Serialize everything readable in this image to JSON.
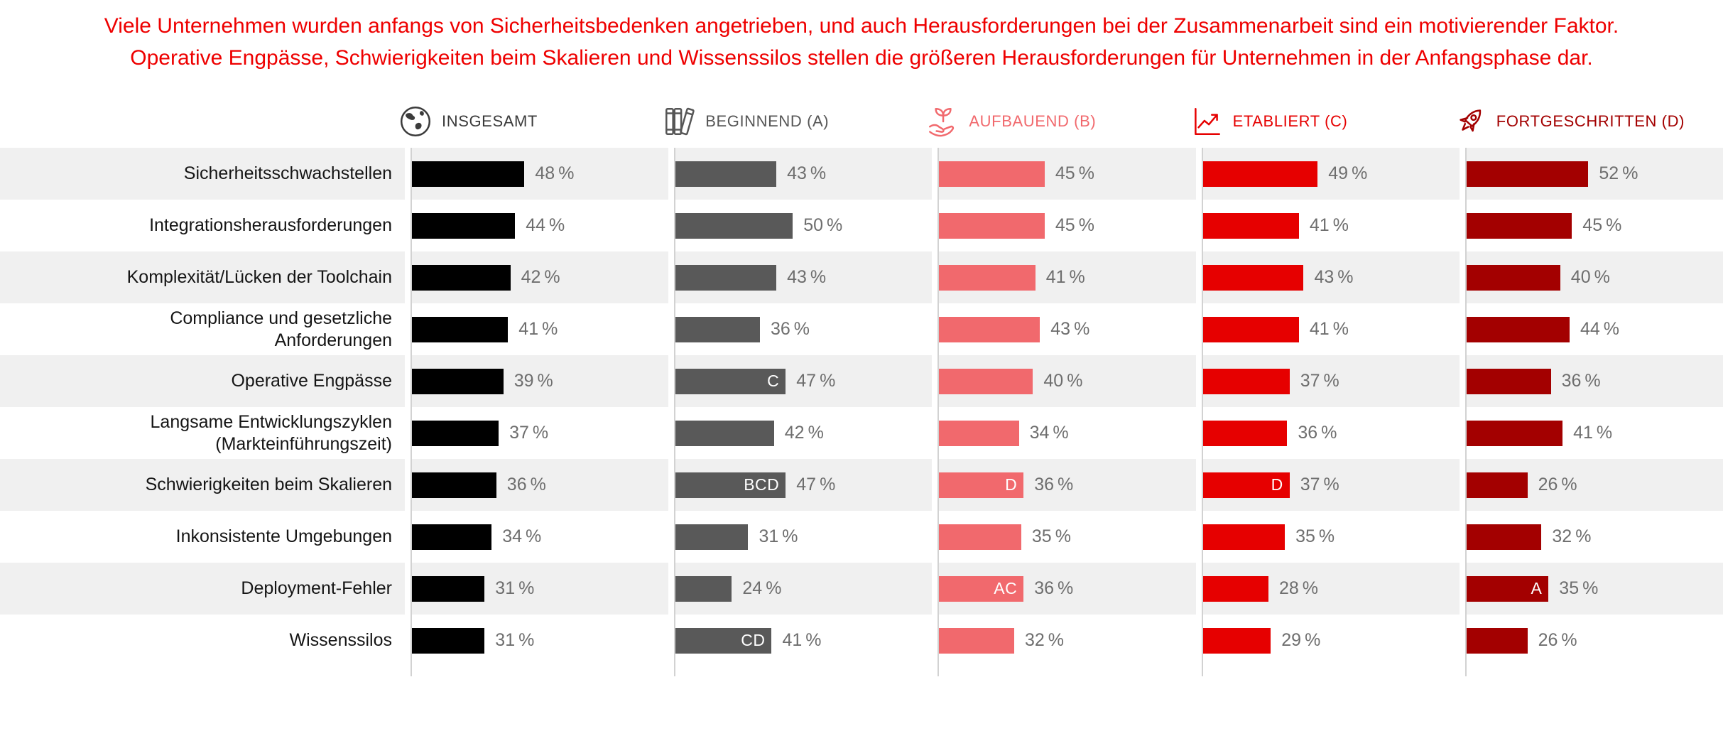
{
  "title": "Viele Unternehmen wurden anfangs von Sicherheitsbedenken angetrieben, und auch Herausforderungen bei der Zusammenarbeit sind ein motivierender Faktor. Operative Engpässe, Schwierigkeiten beim Skalieren und Wissenssilos stellen die größeren Herausforderungen für Unternehmen in der Anfangsphase dar.",
  "colors": {
    "title_text": "#ee0000",
    "row_shading": "#f0f0f0",
    "axis_line": "#d2d2d2",
    "value_text": "#6e6e6e",
    "category_text": "#151515",
    "mark_text": "#ffffff"
  },
  "chart_data": {
    "type": "bar",
    "orientation": "horizontal",
    "unit": "%",
    "title": "Viele Unternehmen wurden anfangs von Sicherheitsbedenken angetrieben, und auch Herausforderungen bei der Zusammenarbeit sind ein motivierender Faktor. Operative Engpässe, Schwierigkeiten beim Skalieren und Wissenssilos stellen die größeren Herausforderungen für Unternehmen in der Anfangsphase dar.",
    "xlim": [
      0,
      60
    ],
    "row_shading": "alternating-starting-shaded",
    "legend_position": "column-headers-top",
    "categories": [
      "Sicherheitsschwachstellen",
      "Integrationsherausforderungen",
      "Komplexität/Lücken der Toolchain",
      "Compliance und gesetzliche Anforderungen",
      "Operative Engpässe",
      "Langsame Entwicklungszyklen (Markteinführungszeit)",
      "Schwierigkeiten beim Skalieren",
      "Inkonsistente Umgebungen",
      "Deployment-Fehler",
      "Wissenssilos"
    ],
    "series": [
      {
        "name": "INSGESAMT",
        "icon": "globe-icon",
        "color": "#000000",
        "label_color": "#3b3b3b",
        "values": [
          48,
          44,
          42,
          41,
          39,
          37,
          36,
          34,
          31,
          31
        ],
        "marks": [
          "",
          "",
          "",
          "",
          "",
          "",
          "",
          "",
          "",
          ""
        ]
      },
      {
        "name": "BEGINNEND (A)",
        "icon": "books-icon",
        "color": "#595959",
        "label_color": "#565656",
        "values": [
          43,
          50,
          43,
          36,
          47,
          42,
          47,
          31,
          24,
          41
        ],
        "marks": [
          "",
          "",
          "",
          "",
          "C",
          "",
          "BCD",
          "",
          "",
          "CD"
        ]
      },
      {
        "name": "AUFBAUEND (B)",
        "icon": "seedling-hand-icon",
        "color": "#f1696d",
        "label_color": "#f1696d",
        "values": [
          45,
          45,
          41,
          43,
          40,
          34,
          36,
          35,
          36,
          32
        ],
        "marks": [
          "",
          "",
          "",
          "",
          "",
          "",
          "D",
          "",
          "AC",
          ""
        ]
      },
      {
        "name": "ETABLIERT (C)",
        "icon": "growth-chart-icon",
        "color": "#e60000",
        "label_color": "#e60000",
        "values": [
          49,
          41,
          43,
          41,
          37,
          36,
          37,
          35,
          28,
          29
        ],
        "marks": [
          "",
          "",
          "",
          "",
          "",
          "",
          "D",
          "",
          "",
          ""
        ]
      },
      {
        "name": "FORTGESCHRITTEN (D)",
        "icon": "rocket-icon",
        "color": "#a30000",
        "label_color": "#a30000",
        "values": [
          52,
          45,
          40,
          44,
          36,
          41,
          26,
          32,
          35,
          26
        ],
        "marks": [
          "",
          "",
          "",
          "",
          "",
          "",
          "",
          "",
          "A",
          ""
        ]
      }
    ]
  }
}
